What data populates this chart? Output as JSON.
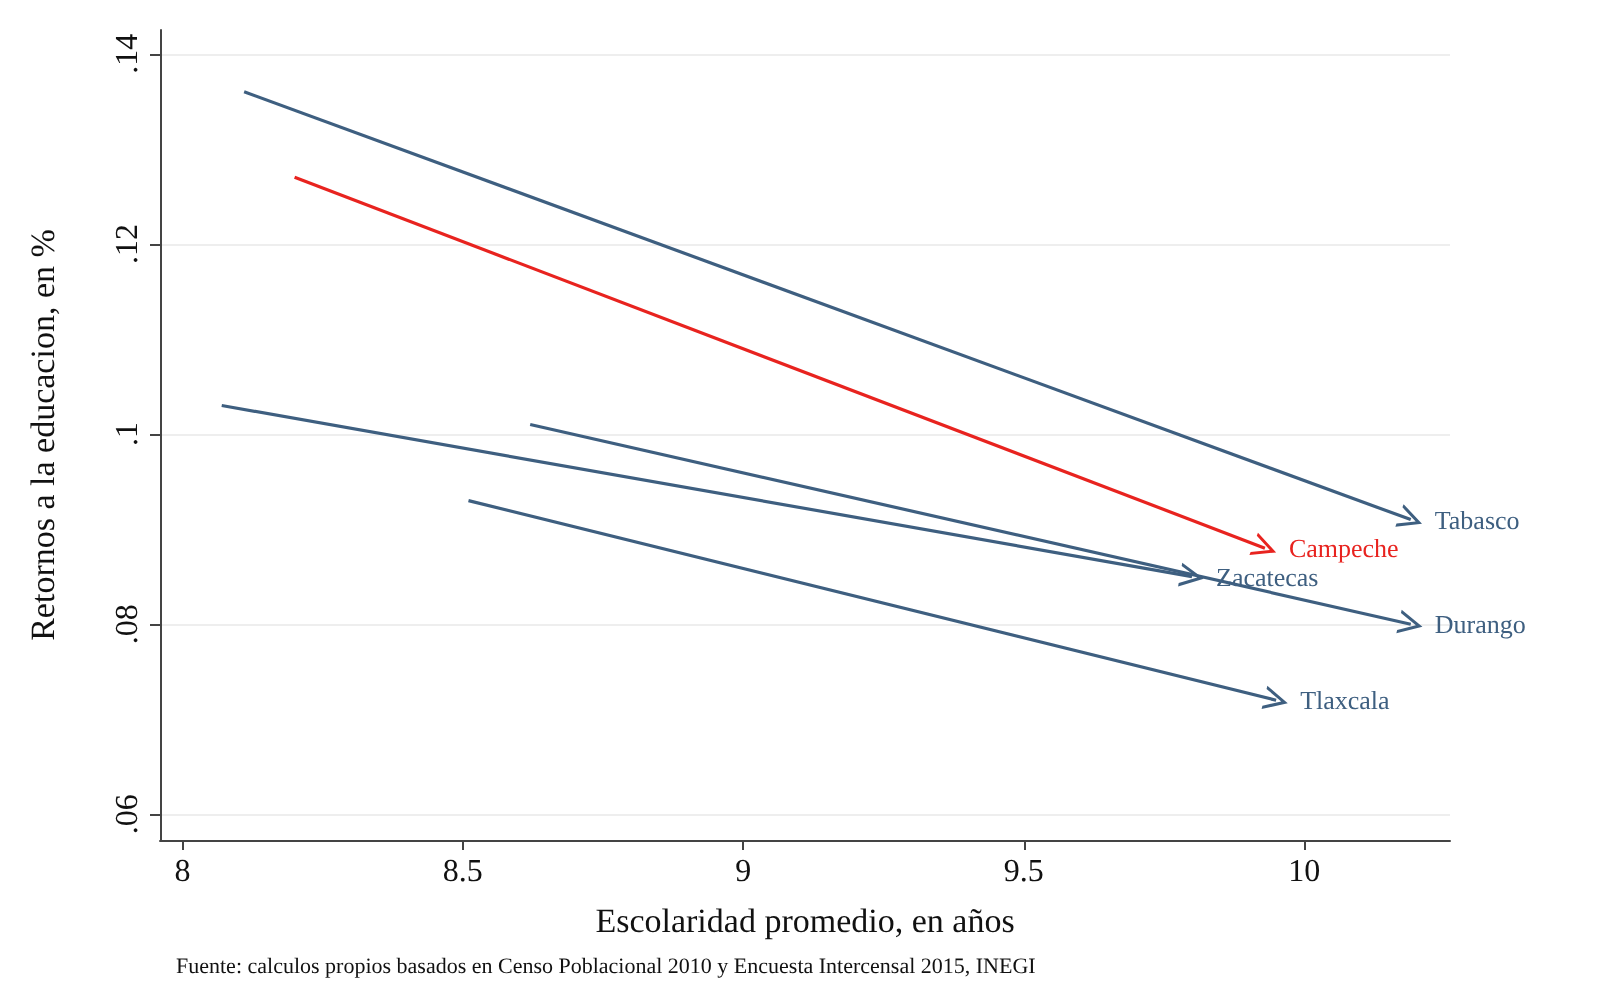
{
  "chart_data": {
    "type": "line",
    "xlabel": "Escolaridad promedio, en años",
    "ylabel": "Retornos a la educacion, en %",
    "annotations": [
      "Fuente: calculos propios basados en Censo Poblacional 2010 y Encuesta Intercensal 2015, INEGI"
    ],
    "series": [
      {
        "name": "Tabasco",
        "color": "#3e5f80",
        "x": [
          8.11,
          10.19
        ],
        "values": [
          0.136,
          0.091
        ]
      },
      {
        "name": "Campeche",
        "color": "#e8231f",
        "x": [
          8.2,
          9.93
        ],
        "values": [
          0.127,
          0.088
        ]
      },
      {
        "name": "Zacatecas",
        "color": "#3e5f80",
        "x": [
          8.07,
          9.8
        ],
        "values": [
          0.103,
          0.085
        ]
      },
      {
        "name": "Durango",
        "color": "#3e5f80",
        "x": [
          8.62,
          10.19
        ],
        "values": [
          0.101,
          0.08
        ]
      },
      {
        "name": "Tlaxcala",
        "color": "#3e5f80",
        "x": [
          8.51,
          9.95
        ],
        "values": [
          0.093,
          0.072
        ]
      }
    ],
    "xlim": [
      7.96,
      10.26
    ],
    "xticks": [
      8,
      8.5,
      9,
      9.5,
      10
    ],
    "ylim": [
      0.0573,
      0.1425
    ],
    "yticks": [
      {
        "value": 0.06,
        "label": ".06"
      },
      {
        "value": 0.08,
        "label": ".08"
      },
      {
        "value": 0.1,
        "label": ".1"
      },
      {
        "value": 0.12,
        "label": ".12"
      },
      {
        "value": 0.14,
        "label": ".14"
      }
    ],
    "grid": "y",
    "legend": false
  }
}
